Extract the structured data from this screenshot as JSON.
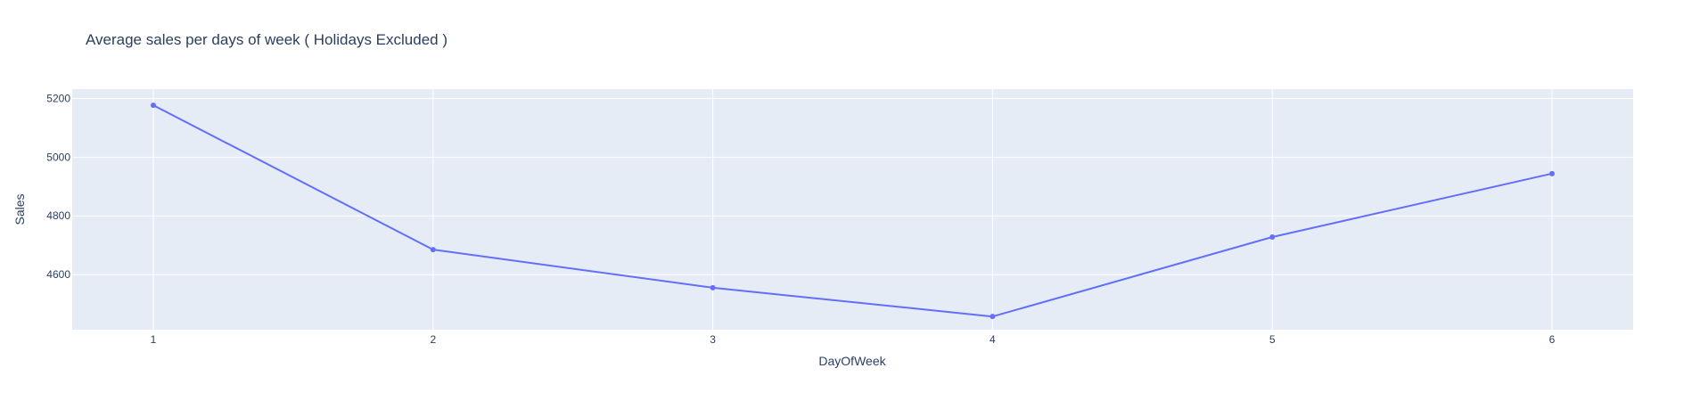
{
  "chart_data": {
    "type": "line",
    "title": "Average sales per days of week ( Holidays Excluded )",
    "xlabel": "DayOfWeek",
    "ylabel": "Sales",
    "x": [
      1,
      2,
      3,
      4,
      5,
      6
    ],
    "series": [
      {
        "values": [
          5177,
          4685,
          4555,
          4457,
          4728,
          4944
        ]
      }
    ],
    "xlim": [
      0.71,
      6.29
    ],
    "ylim": [
      4412,
      5232
    ],
    "xticks": [
      "1",
      "2",
      "3",
      "4",
      "5",
      "6"
    ],
    "yticks": [
      "4600",
      "4800",
      "5000",
      "5200"
    ],
    "ytick_values": [
      4600,
      4800,
      5000,
      5200
    ],
    "grid": true,
    "legend": "none",
    "colors": {
      "line": "#636efa",
      "plot_background": "#e5ecf6",
      "grid": "#ffffff",
      "text": "#2a3f5f"
    }
  }
}
